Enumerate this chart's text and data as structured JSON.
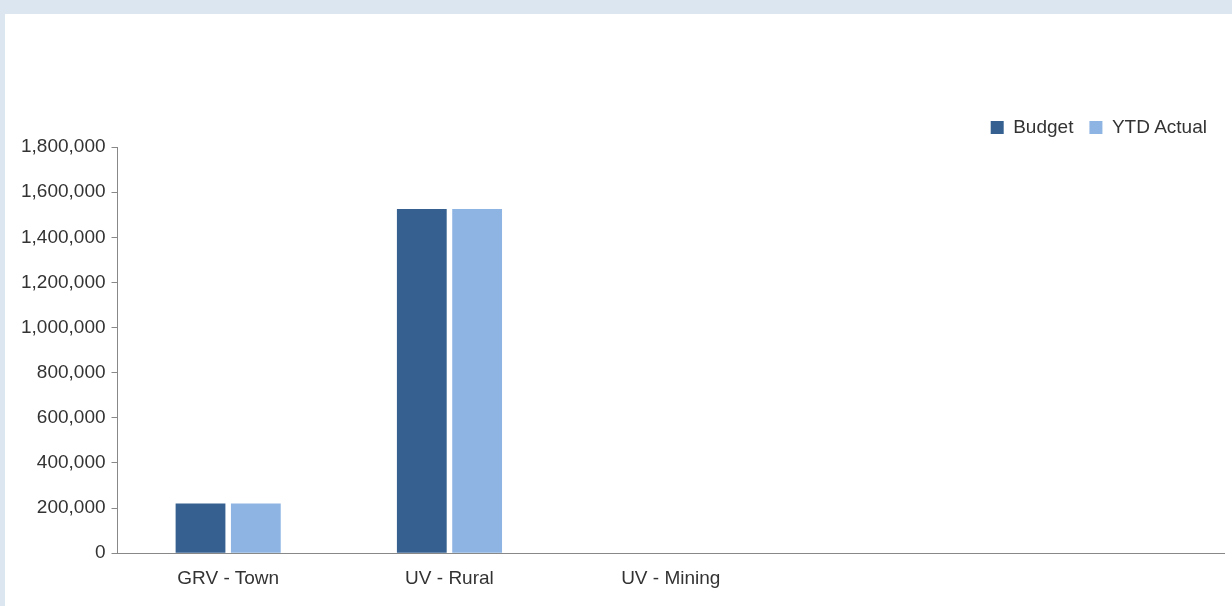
{
  "chart_data": {
    "type": "bar",
    "categories": [
      "GRV - Town",
      "UV - Rural",
      "UV - Mining",
      null,
      null
    ],
    "series": [
      {
        "name": "Budget",
        "color": "#35608f",
        "values": [
          220000,
          1525000,
          0,
          0,
          0
        ]
      },
      {
        "name": "YTD Actual",
        "color": "#8eb4e3",
        "values": [
          220000,
          1525000,
          0,
          0,
          0
        ]
      }
    ],
    "ylim": [
      0,
      1800000
    ],
    "yticks": [
      {
        "value": 0,
        "label": "0"
      },
      {
        "value": 200000,
        "label": "200,000"
      },
      {
        "value": 400000,
        "label": "400,000"
      },
      {
        "value": 600000,
        "label": "600,000"
      },
      {
        "value": 800000,
        "label": "800,000"
      },
      {
        "value": 1000000,
        "label": "1,000,000"
      },
      {
        "value": 1200000,
        "label": "1,200,000"
      },
      {
        "value": 1400000,
        "label": "1,400,000"
      },
      {
        "value": 1600000,
        "label": "1,600,000"
      },
      {
        "value": 1800000,
        "label": "1,800,000"
      }
    ],
    "grid": false,
    "legend": "top right"
  }
}
